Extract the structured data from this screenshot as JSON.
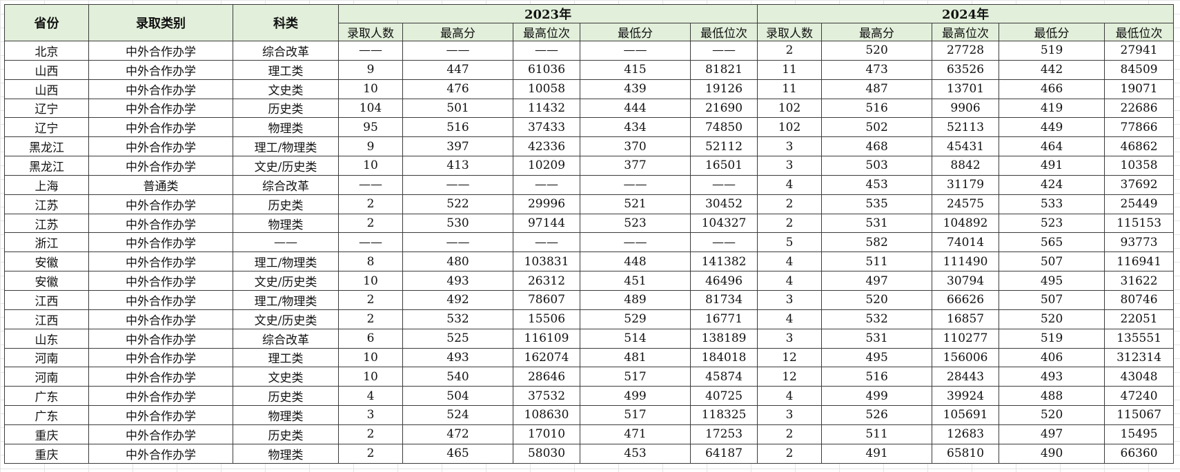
{
  "header": {
    "province": "省份",
    "admission_type": "录取类别",
    "subject": "科类",
    "year_groups": [
      "2023年",
      "2024年"
    ],
    "sub_columns": [
      "录取人数",
      "最高分",
      "最高位次",
      "最低分",
      "最低位次"
    ]
  },
  "rows": [
    [
      "北京",
      "中外合作办学",
      "综合改革",
      "——",
      "——",
      "——",
      "——",
      "——",
      "2",
      "520",
      "27728",
      "519",
      "27941"
    ],
    [
      "山西",
      "中外合作办学",
      "理工类",
      "9",
      "447",
      "61036",
      "415",
      "81821",
      "11",
      "473",
      "63526",
      "442",
      "84509"
    ],
    [
      "山西",
      "中外合作办学",
      "文史类",
      "10",
      "476",
      "10058",
      "439",
      "19126",
      "11",
      "487",
      "13701",
      "466",
      "19071"
    ],
    [
      "辽宁",
      "中外合作办学",
      "历史类",
      "104",
      "501",
      "11432",
      "444",
      "21690",
      "102",
      "516",
      "9906",
      "419",
      "22686"
    ],
    [
      "辽宁",
      "中外合作办学",
      "物理类",
      "95",
      "516",
      "37433",
      "434",
      "74850",
      "102",
      "502",
      "52113",
      "449",
      "77866"
    ],
    [
      "黑龙江",
      "中外合作办学",
      "理工/物理类",
      "9",
      "397",
      "42336",
      "370",
      "52112",
      "3",
      "468",
      "45431",
      "464",
      "46862"
    ],
    [
      "黑龙江",
      "中外合作办学",
      "文史/历史类",
      "10",
      "413",
      "10209",
      "377",
      "16501",
      "3",
      "503",
      "8842",
      "491",
      "10358"
    ],
    [
      "上海",
      "普通类",
      "综合改革",
      "——",
      "——",
      "——",
      "——",
      "——",
      "4",
      "453",
      "31179",
      "424",
      "37692"
    ],
    [
      "江苏",
      "中外合作办学",
      "历史类",
      "2",
      "522",
      "29996",
      "521",
      "30452",
      "2",
      "535",
      "24575",
      "533",
      "25449"
    ],
    [
      "江苏",
      "中外合作办学",
      "物理类",
      "2",
      "530",
      "97144",
      "523",
      "104327",
      "2",
      "531",
      "104892",
      "523",
      "115153"
    ],
    [
      "浙江",
      "中外合作办学",
      "——",
      "——",
      "——",
      "——",
      "——",
      "——",
      "5",
      "582",
      "74014",
      "565",
      "93773"
    ],
    [
      "安徽",
      "中外合作办学",
      "理工/物理类",
      "8",
      "480",
      "103831",
      "448",
      "141382",
      "4",
      "511",
      "111490",
      "507",
      "116941"
    ],
    [
      "安徽",
      "中外合作办学",
      "文史/历史类",
      "10",
      "493",
      "26312",
      "451",
      "46496",
      "4",
      "497",
      "30794",
      "495",
      "31622"
    ],
    [
      "江西",
      "中外合作办学",
      "理工/物理类",
      "2",
      "492",
      "78607",
      "489",
      "81734",
      "3",
      "520",
      "66626",
      "507",
      "80746"
    ],
    [
      "江西",
      "中外合作办学",
      "文史/历史类",
      "2",
      "532",
      "15506",
      "529",
      "16771",
      "4",
      "532",
      "16857",
      "520",
      "22051"
    ],
    [
      "山东",
      "中外合作办学",
      "综合改革",
      "6",
      "525",
      "116109",
      "514",
      "138189",
      "3",
      "531",
      "110277",
      "519",
      "135551"
    ],
    [
      "河南",
      "中外合作办学",
      "理工类",
      "10",
      "493",
      "162074",
      "481",
      "184018",
      "12",
      "495",
      "156006",
      "406",
      "312314"
    ],
    [
      "河南",
      "中外合作办学",
      "文史类",
      "10",
      "540",
      "28646",
      "517",
      "45874",
      "12",
      "516",
      "28443",
      "493",
      "43048"
    ],
    [
      "广东",
      "中外合作办学",
      "历史类",
      "4",
      "504",
      "37532",
      "499",
      "40725",
      "4",
      "499",
      "39924",
      "488",
      "47240"
    ],
    [
      "广东",
      "中外合作办学",
      "物理类",
      "3",
      "524",
      "108630",
      "517",
      "118325",
      "3",
      "526",
      "105691",
      "520",
      "115067"
    ],
    [
      "重庆",
      "中外合作办学",
      "历史类",
      "2",
      "472",
      "17010",
      "471",
      "17253",
      "2",
      "511",
      "12683",
      "497",
      "15495"
    ],
    [
      "重庆",
      "中外合作办学",
      "物理类",
      "2",
      "465",
      "58030",
      "453",
      "64187",
      "2",
      "491",
      "65810",
      "490",
      "66360"
    ]
  ],
  "colors": {
    "header_background": "#e2efda",
    "border": "#3a3a3a",
    "gridline": "#e4e4e4"
  }
}
